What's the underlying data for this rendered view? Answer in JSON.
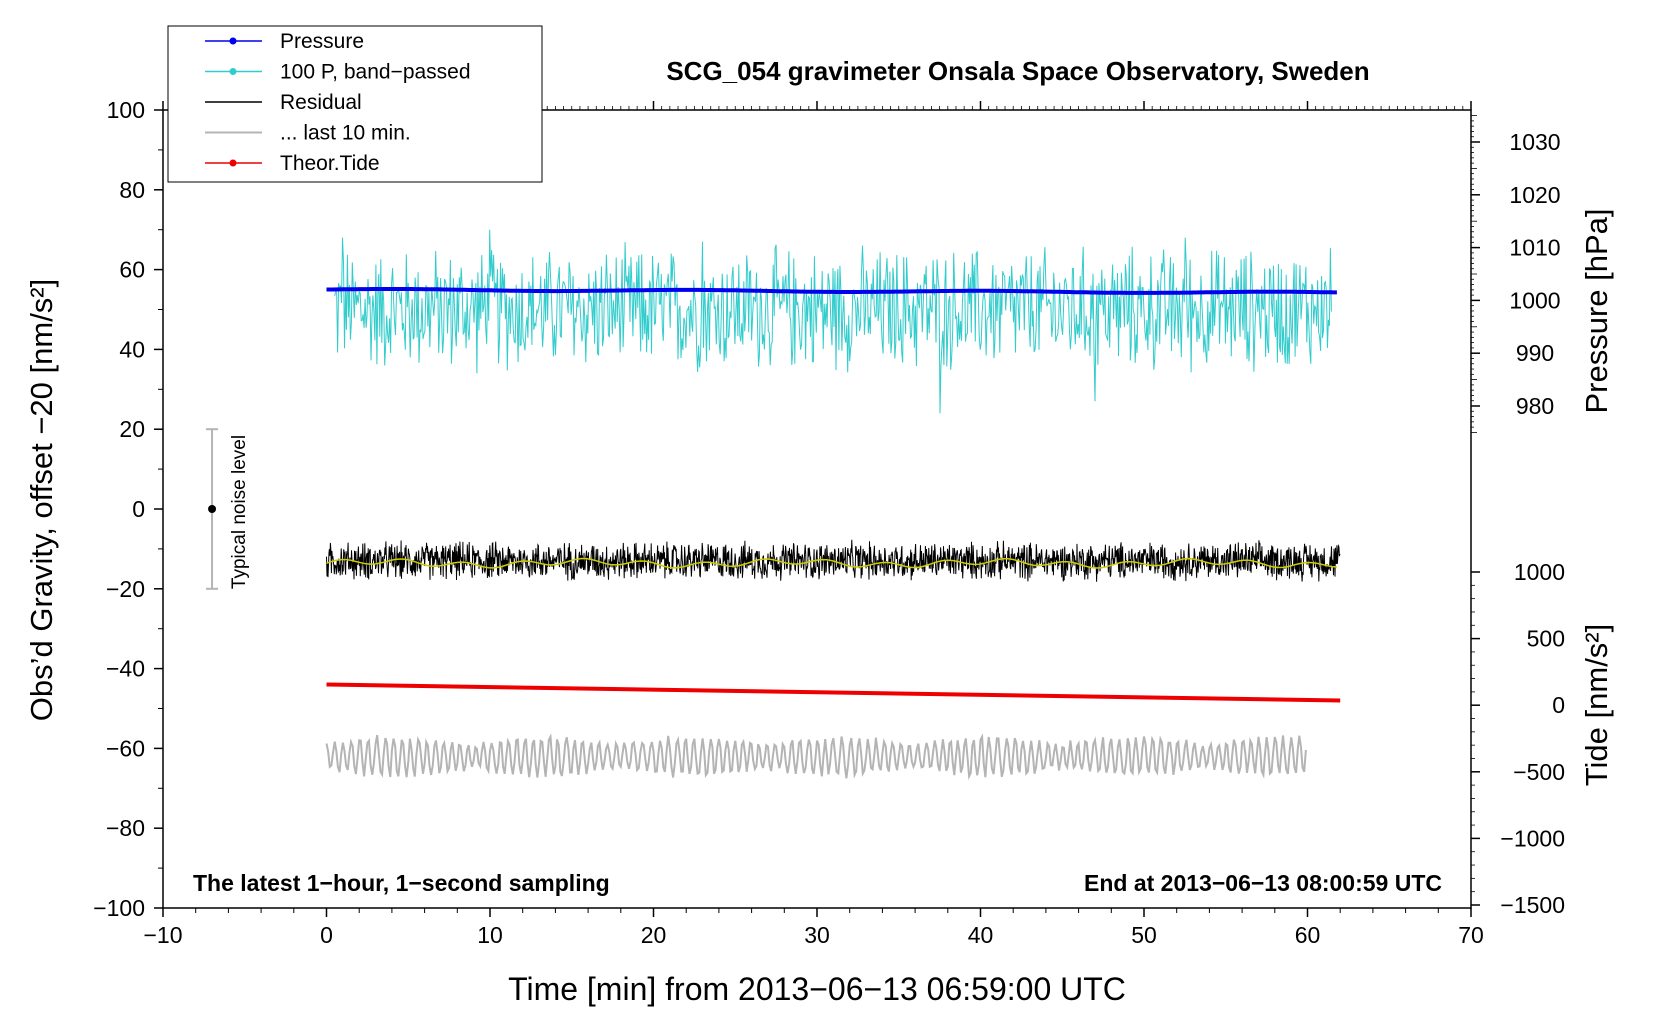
{
  "chart_data": {
    "type": "line",
    "title": "SCG_054 gravimeter Onsala Space Observatory, Sweden",
    "xlabel": "Time [min] from 2013−06−13 06:59:00 UTC",
    "ylabel": "Obs’d Gravity, offset −20 [nm/s²]",
    "ylabel_right_pressure": "Pressure [hPa]",
    "ylabel_right_tide": "Tide [nm/s²]",
    "xlim": [
      -10,
      70
    ],
    "ylim": [
      -100,
      100
    ],
    "x_ticks": [
      -10,
      0,
      10,
      20,
      30,
      40,
      50,
      60,
      70
    ],
    "x_tick_labels": [
      "−10",
      "0",
      "10",
      "20",
      "30",
      "40",
      "50",
      "60",
      "70"
    ],
    "y_ticks": [
      -100,
      -80,
      -60,
      -40,
      -20,
      0,
      20,
      40,
      60,
      80,
      100
    ],
    "y_tick_labels": [
      "−100",
      "−80",
      "−60",
      "−40",
      "−20",
      "0",
      "20",
      "40",
      "60",
      "80",
      "100"
    ],
    "pressure_ticks": [
      980,
      990,
      1000,
      1010,
      1020,
      1030
    ],
    "pressure_tick_labels": [
      "980",
      "990",
      "1000",
      "1010",
      "1020",
      "1030"
    ],
    "tide_ticks": [
      -1500,
      -1000,
      -500,
      0,
      500,
      1000
    ],
    "tide_tick_labels": [
      "−1500",
      "−1000",
      "−500",
      "0",
      "500",
      "1000"
    ],
    "grid": false,
    "legend_position": "top-left",
    "legend": [
      {
        "label": "Pressure",
        "color": "#0000ee",
        "marker": true
      },
      {
        "label": "100 P, band−passed",
        "color": "#33cccc",
        "marker": true
      },
      {
        "label": "Residual",
        "color": "#000000",
        "marker": false
      },
      {
        "label": "... last 10 min.",
        "color": "#b4b4b4",
        "marker": false
      },
      {
        "label": "Theor.Tide",
        "color": "#ee0000",
        "marker": true
      }
    ],
    "annotations": {
      "bottom_left": "The latest 1−hour, 1−second sampling",
      "bottom_right": "End at 2013−06−13 08:00:59 UTC",
      "noise_label": "Typical noise level"
    },
    "noise_bar": {
      "x": -7,
      "center": 0,
      "low": -20,
      "high": 20
    },
    "series": [
      {
        "name": "Pressure",
        "x_start": 0,
        "x_end": 62,
        "y_start": 55,
        "y_end": 54.2,
        "unit_axis": "gravity"
      },
      {
        "name": "100 P, band−passed",
        "x_start": 0.5,
        "x_end": 61.5,
        "center": 50,
        "amplitude": 16,
        "spikes": [
          [
            1,
            68
          ],
          [
            10,
            70
          ],
          [
            23,
            67
          ],
          [
            37.5,
            24
          ],
          [
            47,
            27
          ],
          [
            52.5,
            68
          ]
        ]
      },
      {
        "name": "Residual",
        "x_start": 0,
        "x_end": 62,
        "center": -13,
        "amplitude": 5
      },
      {
        "name": "... last 10 min.",
        "x_start": 0,
        "x_end": 60,
        "center": -62,
        "amplitude": 4
      },
      {
        "name": "Theor.Tide",
        "x_start": 0,
        "x_end": 62,
        "y_start": -44,
        "y_end": -48
      }
    ]
  },
  "colors": {
    "pressure": "#0000ee",
    "bandpass": "#33cccc",
    "residual": "#000000",
    "residual_smooth": "#cccc00",
    "last10": "#b4b4b4",
    "tide": "#ee0000",
    "noise_bar": "#b4b4b4"
  }
}
